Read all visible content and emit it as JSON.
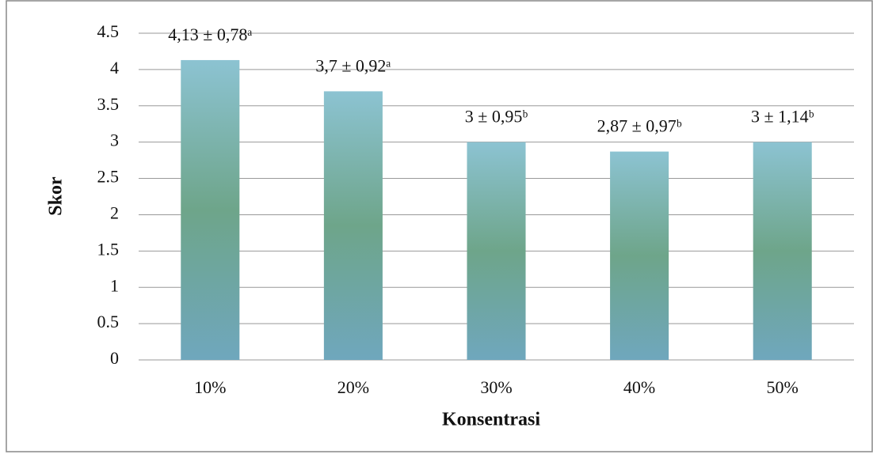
{
  "chart_data": {
    "type": "bar",
    "x_label": "Konsentrasi",
    "y_label": "Skor",
    "categories": [
      "10%",
      "20%",
      "30%",
      "40%",
      "50%"
    ],
    "values": [
      4.13,
      3.7,
      3,
      2.87,
      3
    ],
    "value_labels": [
      "4,13 ± 0,78ᵃ",
      "3,7 ± 0,92ᵃ",
      "3 ± 0,95ᵇ",
      "2,87 ± 0,97ᵇ",
      "3 ± 1,14ᵇ"
    ],
    "color": "#7fb3c6",
    "ylim": [
      0,
      4.5
    ],
    "yticks": [
      0,
      0.5,
      1,
      1.5,
      2,
      2.5,
      3,
      3.5,
      4,
      4.5
    ],
    "grid": true
  }
}
